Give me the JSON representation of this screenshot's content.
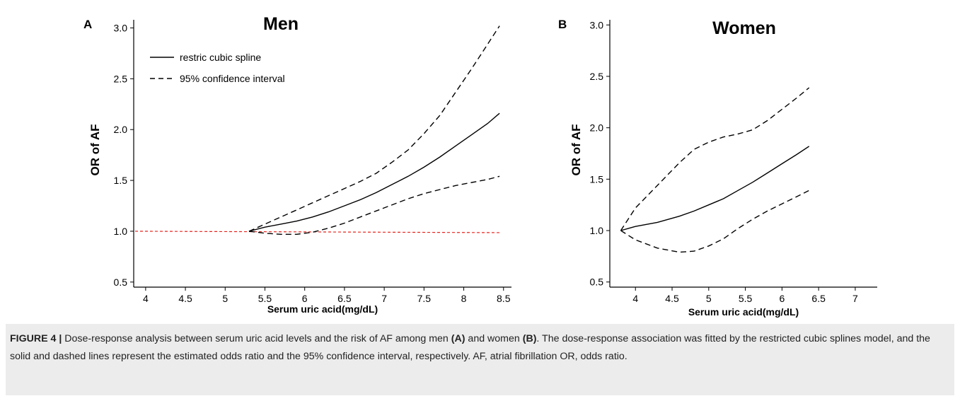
{
  "chart_data": [
    {
      "type": "line",
      "panel_label": "A",
      "title": "Men",
      "xlabel": "Serum uric acid(mg/dL)",
      "ylabel": "OR of AF",
      "xlim": [
        3.85,
        8.6
      ],
      "ylim": [
        0.45,
        3.08
      ],
      "xticks": [
        "4",
        "4.5",
        "5",
        "5.5",
        "6",
        "6.5",
        "7",
        "7.5",
        "8",
        "8.5"
      ],
      "yticks": [
        "0.5",
        "1.0",
        "1.5",
        "2.0",
        "2.5",
        "3.0"
      ],
      "legend": {
        "position": "top-left",
        "entries": [
          {
            "label": "restric cubic spline",
            "style": "solid"
          },
          {
            "label": "95% confidence interval",
            "style": "dashed"
          }
        ]
      },
      "reference_line": {
        "y": 1.0,
        "color": "#e8221b",
        "style": "dashed"
      },
      "series": [
        {
          "name": "restric cubic spline",
          "style": "solid",
          "color": "#000000",
          "x": [
            5.3,
            5.5,
            5.7,
            5.9,
            6.1,
            6.3,
            6.5,
            6.7,
            6.9,
            7.1,
            7.3,
            7.5,
            7.7,
            7.9,
            8.1,
            8.3,
            8.45
          ],
          "y": [
            1.0,
            1.04,
            1.07,
            1.1,
            1.14,
            1.19,
            1.25,
            1.31,
            1.38,
            1.46,
            1.54,
            1.63,
            1.73,
            1.84,
            1.95,
            2.06,
            2.16
          ]
        },
        {
          "name": "95% confidence interval",
          "style": "dashed",
          "color": "#000000",
          "x": [
            5.3,
            5.5,
            5.7,
            5.9,
            6.1,
            6.3,
            6.5,
            6.7,
            6.9,
            7.1,
            7.3,
            7.5,
            7.7,
            7.9,
            8.1,
            8.3,
            8.45
          ],
          "y": [
            1.0,
            1.07,
            1.14,
            1.21,
            1.28,
            1.35,
            1.42,
            1.49,
            1.57,
            1.68,
            1.8,
            1.96,
            2.14,
            2.37,
            2.6,
            2.84,
            3.02
          ]
        },
        {
          "name": "95% confidence interval",
          "style": "dashed",
          "color": "#000000",
          "x": [
            5.3,
            5.5,
            5.7,
            5.9,
            6.1,
            6.3,
            6.5,
            6.7,
            6.9,
            7.1,
            7.3,
            7.5,
            7.7,
            7.9,
            8.1,
            8.3,
            8.45
          ],
          "y": [
            1.0,
            0.98,
            0.97,
            0.97,
            0.99,
            1.03,
            1.08,
            1.14,
            1.2,
            1.26,
            1.32,
            1.37,
            1.41,
            1.45,
            1.48,
            1.51,
            1.54
          ]
        }
      ]
    },
    {
      "type": "line",
      "panel_label": "B",
      "title": "Women",
      "xlabel": "Serum uric acid(mg/dL)",
      "ylabel": "OR of AF",
      "xlim": [
        3.65,
        7.3
      ],
      "ylim": [
        0.45,
        3.05
      ],
      "xticks": [
        "4",
        "4.5",
        "5",
        "5.5",
        "6",
        "6.5",
        "7"
      ],
      "yticks": [
        "0.5",
        "1.0",
        "1.5",
        "2.0",
        "2.5",
        "3.0"
      ],
      "series": [
        {
          "name": "restric cubic spline",
          "style": "solid",
          "color": "#000000",
          "x": [
            3.8,
            4.0,
            4.3,
            4.6,
            4.8,
            5.0,
            5.2,
            5.4,
            5.6,
            5.8,
            6.0,
            6.2,
            6.37
          ],
          "y": [
            1.0,
            1.04,
            1.08,
            1.14,
            1.19,
            1.25,
            1.31,
            1.39,
            1.47,
            1.56,
            1.65,
            1.74,
            1.82
          ]
        },
        {
          "name": "95% confidence interval",
          "style": "dashed",
          "color": "#000000",
          "x": [
            3.8,
            4.0,
            4.3,
            4.6,
            4.8,
            5.0,
            5.2,
            5.4,
            5.6,
            5.8,
            6.0,
            6.2,
            6.37
          ],
          "y": [
            1.0,
            1.22,
            1.44,
            1.66,
            1.79,
            1.86,
            1.91,
            1.94,
            1.98,
            2.07,
            2.18,
            2.29,
            2.39
          ]
        },
        {
          "name": "95% confidence interval",
          "style": "dashed",
          "color": "#000000",
          "x": [
            3.8,
            4.0,
            4.3,
            4.6,
            4.8,
            5.0,
            5.2,
            5.4,
            5.6,
            5.8,
            6.0,
            6.2,
            6.37
          ],
          "y": [
            1.0,
            0.91,
            0.83,
            0.79,
            0.8,
            0.85,
            0.92,
            1.02,
            1.11,
            1.19,
            1.26,
            1.33,
            1.39
          ]
        }
      ]
    }
  ],
  "caption": {
    "prefix": "FIGURE 4 |",
    "text1": " Dose-response analysis between serum uric acid levels and the risk of AF among men ",
    "label_a": "(A)",
    "text2": " and women ",
    "label_b": "(B)",
    "text3": ". The dose-response association was fitted by the restricted cubic splines model, and the solid and dashed lines represent the estimated odds ratio and the 95% confidence interval, respectively. AF, atrial fibrillation OR, odds ratio."
  }
}
